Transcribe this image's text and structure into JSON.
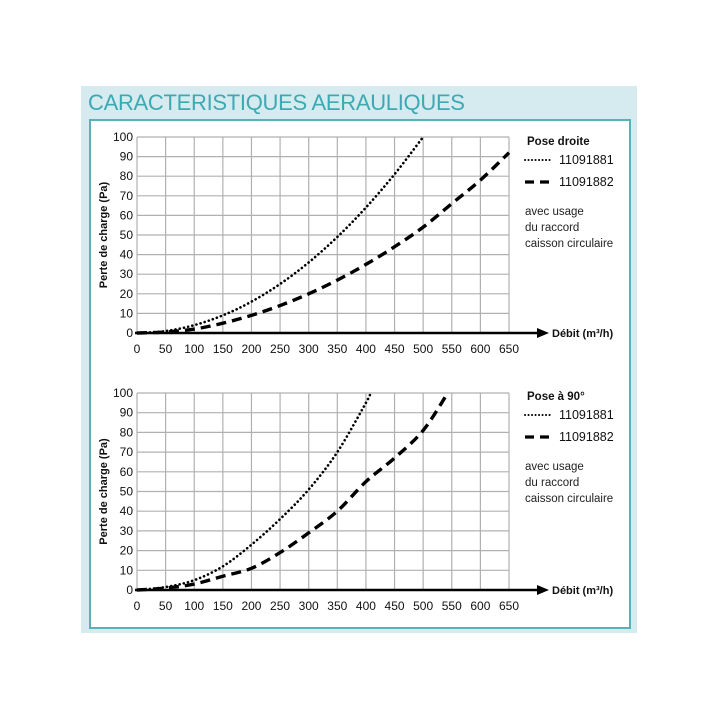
{
  "title": "CARACTERISTIQUES AERAULIQUES",
  "colors": {
    "title": "#3ea9b2",
    "panel_bg": "#d5ebef",
    "inner_border": "#5cb0b8",
    "grid": "#b0b0b0",
    "curve": "#000000"
  },
  "chart_data": [
    {
      "type": "line",
      "title": "Pose droite",
      "xlabel": "Débit (m³/h)",
      "ylabel": "Perte de charge (Pa)",
      "xlim": [
        0,
        650
      ],
      "ylim": [
        0,
        100
      ],
      "x_ticks": [
        0,
        50,
        100,
        150,
        200,
        250,
        300,
        350,
        400,
        450,
        500,
        550,
        600,
        650
      ],
      "y_ticks": [
        0,
        10,
        20,
        30,
        40,
        50,
        60,
        70,
        80,
        90,
        100
      ],
      "grid": true,
      "legend_position": "right",
      "note": [
        "avec usage",
        "du raccord",
        "caisson circulaire"
      ],
      "x": [
        0,
        50,
        100,
        150,
        200,
        250,
        300,
        350,
        400,
        450,
        500,
        550,
        600,
        650
      ],
      "series": [
        {
          "name": "11091881",
          "style": "dotted",
          "values": [
            0,
            1,
            4,
            9,
            16,
            25,
            36,
            49,
            64,
            81,
            100,
            null,
            null,
            null
          ]
        },
        {
          "name": "11091882",
          "style": "dashed",
          "values": [
            0,
            0.5,
            2,
            5,
            9,
            14,
            20,
            27,
            35,
            44,
            54,
            66,
            78,
            92
          ]
        }
      ]
    },
    {
      "type": "line",
      "title": "Pose à 90°",
      "xlabel": "Débit (m³/h)",
      "ylabel": "Perte de charge (Pa)",
      "xlim": [
        0,
        650
      ],
      "ylim": [
        0,
        100
      ],
      "x_ticks": [
        0,
        50,
        100,
        150,
        200,
        250,
        300,
        350,
        400,
        450,
        500,
        550,
        600,
        650
      ],
      "y_ticks": [
        0,
        10,
        20,
        30,
        40,
        50,
        60,
        70,
        80,
        90,
        100
      ],
      "grid": true,
      "legend_position": "right",
      "note": [
        "avec usage",
        "du raccord",
        "caisson circulaire"
      ],
      "x": [
        0,
        50,
        100,
        150,
        200,
        250,
        300,
        350,
        400,
        408
      ],
      "series": [
        {
          "name": "11091881",
          "style": "dotted",
          "values": [
            0,
            1.5,
            5,
            12,
            23,
            36,
            51,
            70,
            95,
            100
          ]
        },
        {
          "name": "11091882",
          "style": "dashed",
          "values": [
            0,
            1,
            3,
            7,
            11,
            19,
            29,
            40,
            55,
            null
          ],
          "x_override": [
            0,
            50,
            100,
            150,
            200,
            250,
            300,
            350,
            400,
            450,
            500,
            543
          ],
          "values_full": [
            0,
            1,
            3,
            7,
            11,
            19,
            29,
            40,
            55,
            67,
            81,
            100
          ]
        }
      ]
    }
  ]
}
